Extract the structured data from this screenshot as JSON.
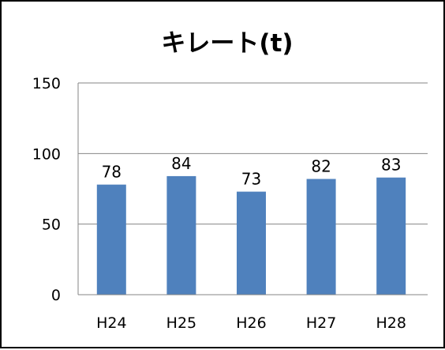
{
  "chart_data": {
    "type": "bar",
    "title": "キレート(t)",
    "categories": [
      "H24",
      "H25",
      "H26",
      "H27",
      "H28"
    ],
    "values": [
      78,
      84,
      73,
      82,
      83
    ],
    "data_labels": [
      "78",
      "84",
      "73",
      "82",
      "83"
    ],
    "ylim": [
      0,
      150
    ],
    "yticks": [
      0,
      50,
      100,
      150
    ],
    "ytick_labels": [
      "0",
      "50",
      "100",
      "150"
    ],
    "xlabel": "",
    "ylabel": "",
    "grid": true,
    "legend": "none",
    "bar_color": "#4f81bd",
    "grid_color": "#868686"
  }
}
